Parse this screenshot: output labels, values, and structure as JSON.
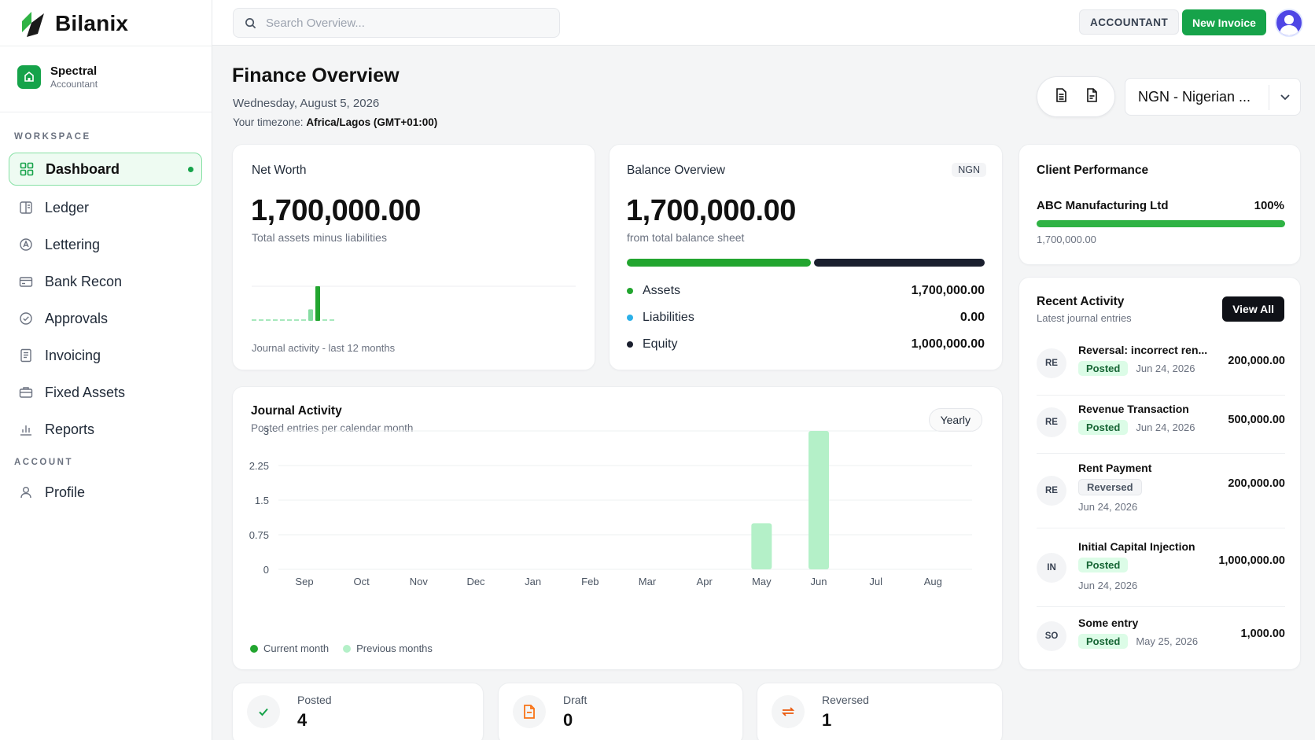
{
  "brand": {
    "name": "Bilanix"
  },
  "org": {
    "name": "Spectral",
    "role": "Accountant"
  },
  "sidebar": {
    "workspace_label": "WORKSPACE",
    "account_label": "ACCOUNT",
    "items": [
      {
        "label": "Dashboard",
        "icon": "grid-icon",
        "active": true
      },
      {
        "label": "Ledger",
        "icon": "ledger-icon"
      },
      {
        "label": "Lettering",
        "icon": "lettering-icon"
      },
      {
        "label": "Bank Recon",
        "icon": "bank-icon"
      },
      {
        "label": "Approvals",
        "icon": "check-circle-icon"
      },
      {
        "label": "Invoicing",
        "icon": "invoice-icon"
      },
      {
        "label": "Fixed Assets",
        "icon": "briefcase-icon"
      },
      {
        "label": "Reports",
        "icon": "bar-chart-icon"
      }
    ],
    "account_items": [
      {
        "label": "Profile",
        "icon": "user-icon"
      }
    ]
  },
  "topbar": {
    "search_placeholder": "Search Overview...",
    "role": "ACCOUNTANT",
    "new_invoice": "New Invoice"
  },
  "header": {
    "title": "Finance Overview",
    "date": "Wednesday, August 5, 2026",
    "tz_label": "Your timezone:",
    "tz_value": "Africa/Lagos (GMT+01:00)",
    "currency": "NGN - Nigerian ..."
  },
  "net_worth": {
    "title": "Net Worth",
    "value": "1,700,000.00",
    "subtitle": "Total assets minus liabilities",
    "caption": "Journal activity - last 12 months",
    "sparkline": [
      0,
      0,
      0,
      0,
      0,
      0,
      0,
      0,
      1,
      3,
      0,
      0
    ]
  },
  "balance": {
    "title": "Balance Overview",
    "currency": "NGN",
    "value": "1,700,000.00",
    "subtitle": "from total balance sheet",
    "colors": {
      "assets": "#22a52f",
      "liabilities": "#2bb0e8",
      "equity": "#1a1f2e"
    },
    "rows": [
      {
        "label": "Assets",
        "value": "1,700,000.00"
      },
      {
        "label": "Liabilities",
        "value": "0.00"
      },
      {
        "label": "Equity",
        "value": "1,000,000.00"
      }
    ]
  },
  "client_perf": {
    "title": "Client Performance",
    "client": "ABC Manufacturing Ltd",
    "percent_label": "100%",
    "percent": 1.0,
    "amount": "1,700,000.00"
  },
  "recent": {
    "title": "Recent Activity",
    "subtitle": "Latest journal entries",
    "view_all": "View All",
    "items": [
      {
        "badge": "RE",
        "title": "Reversal: incorrect ren...",
        "status": "Posted",
        "date": "Jun 24, 2026",
        "amount": "200,000.00"
      },
      {
        "badge": "RE",
        "title": "Revenue Transaction",
        "status": "Posted",
        "date": "Jun 24, 2026",
        "amount": "500,000.00"
      },
      {
        "badge": "RE",
        "title": "Rent Payment",
        "status": "Reversed",
        "date": "Jun 24, 2026",
        "amount": "200,000.00"
      },
      {
        "badge": "IN",
        "title": "Initial Capital Injection",
        "status": "Posted",
        "date": "Jun 24, 2026",
        "amount": "1,000,000.00"
      },
      {
        "badge": "SO",
        "title": "Some entry",
        "status": "Posted",
        "date": "May 25, 2026",
        "amount": "1,000.00"
      }
    ]
  },
  "journal": {
    "title": "Journal Activity",
    "subtitle": "Posted entries per calendar month",
    "period": "Yearly",
    "legend_current": "Current month",
    "legend_previous": "Previous months"
  },
  "chart_data": {
    "type": "bar",
    "categories": [
      "Sep",
      "Oct",
      "Nov",
      "Dec",
      "Jan",
      "Feb",
      "Mar",
      "Apr",
      "May",
      "Jun",
      "Jul",
      "Aug"
    ],
    "values": [
      0,
      0,
      0,
      0,
      0,
      0,
      0,
      0,
      1,
      3,
      0,
      0
    ],
    "yticks": [
      "3",
      "2.25",
      "1.5",
      "0.75",
      "0"
    ],
    "ylim": [
      0,
      3
    ],
    "grid": true,
    "legend": "bottom-left",
    "colors": {
      "current": "#22a52f",
      "previous": "#b4f0c8"
    }
  },
  "stats": [
    {
      "label": "Posted",
      "value": "4",
      "icon": "check-icon"
    },
    {
      "label": "Draft",
      "value": "0",
      "icon": "document-icon"
    },
    {
      "label": "Reversed",
      "value": "1",
      "icon": "swap-icon"
    }
  ]
}
